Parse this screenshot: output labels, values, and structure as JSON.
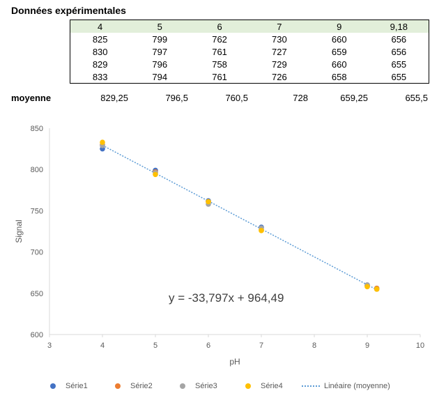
{
  "title": "Données expérimentales",
  "table": {
    "header": [
      "4",
      "5",
      "6",
      "7",
      "9",
      "9,18"
    ],
    "rows": [
      [
        "825",
        "799",
        "762",
        "730",
        "660",
        "656"
      ],
      [
        "830",
        "797",
        "761",
        "727",
        "659",
        "656"
      ],
      [
        "829",
        "796",
        "758",
        "729",
        "660",
        "655"
      ],
      [
        "833",
        "794",
        "761",
        "726",
        "658",
        "655"
      ]
    ]
  },
  "mean": {
    "label": "moyenne",
    "values": [
      "829,25",
      "796,5",
      "760,5",
      "728",
      "659,25",
      "655,5"
    ]
  },
  "chart_data": {
    "type": "scatter",
    "title": "",
    "xlabel": "pH",
    "ylabel": "Signal",
    "xlim": [
      3,
      10
    ],
    "ylim": [
      600,
      850
    ],
    "xticks": [
      "3",
      "4",
      "5",
      "6",
      "7",
      "8",
      "9",
      "10"
    ],
    "yticks": [
      "600",
      "650",
      "700",
      "750",
      "800",
      "850"
    ],
    "x": [
      4,
      5,
      6,
      7,
      9,
      9.18
    ],
    "series": [
      {
        "name": "Série1",
        "color": "#4472c4",
        "values": [
          825,
          799,
          762,
          730,
          660,
          656
        ]
      },
      {
        "name": "Série2",
        "color": "#ed7d31",
        "values": [
          830,
          797,
          761,
          727,
          659,
          656
        ]
      },
      {
        "name": "Série3",
        "color": "#a5a5a5",
        "values": [
          829,
          796,
          758,
          729,
          660,
          655
        ]
      },
      {
        "name": "Série4",
        "color": "#ffc000",
        "values": [
          833,
          794,
          761,
          726,
          658,
          655
        ]
      }
    ],
    "trendline": {
      "name": "Linéaire (moyenne)",
      "color": "#5b9bd5",
      "slope": -33.797,
      "intercept": 964.49,
      "x_range": [
        4,
        9.18
      ],
      "equation": "y = -33,797x + 964,49"
    },
    "legend_position": "bottom",
    "grid": false
  }
}
